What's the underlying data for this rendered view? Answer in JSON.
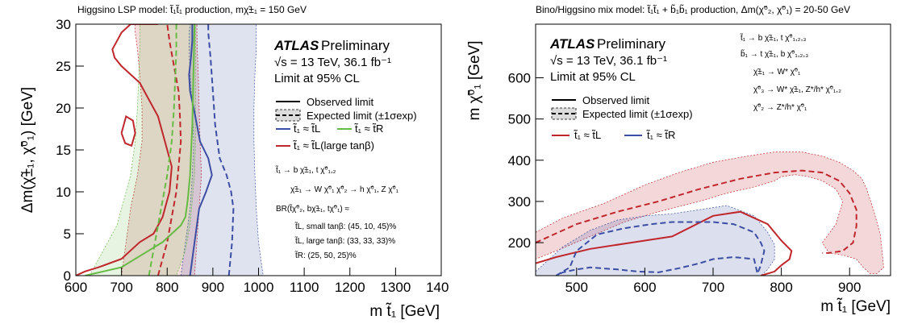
{
  "chart_data": [
    {
      "type": "area",
      "top_title": "Higgsino LSP model: t̃₁t̃₁ production, mχ̃±₁ = 150 GeV",
      "xlabel": "m t̃₁ [GeV]",
      "ylabel": "Δm(χ̃±₁, χ̃⁰₁) [GeV]",
      "xlim": [
        600,
        1400
      ],
      "ylim": [
        0,
        30
      ],
      "x_ticks": [
        "600",
        "700",
        "800",
        "900",
        "1000",
        "1100",
        "1200",
        "1300",
        "1400"
      ],
      "y_ticks": [
        "0",
        "5",
        "10",
        "15",
        "20",
        "25",
        "30"
      ],
      "atlas_label": "ATLAS",
      "preliminary": "Preliminary",
      "energy_lumi": "√s = 13 TeV, 36.1 fb⁻¹",
      "cl_text": "Limit at 95% CL",
      "legend": {
        "observed": "Observed limit",
        "expected": "Expected limit (±1σexp)",
        "tL": "t̃₁ ≈ t̃L",
        "tR": "t̃₁ ≈ t̃R",
        "tL_large": "t̃₁ ≈ t̃L(large tanβ)"
      },
      "notes": [
        "t̃₁ → b χ̃±₁, t χ̃⁰₁,₂",
        "χ̃±₁ → W χ̃⁰₁    χ̃⁰₂ → h χ̃⁰₁, Z χ̃⁰₁",
        "BR(t̃χ̃⁰₂, bχ̃±₁, tχ̃⁰₁) ≈",
        "t̃L, small tanβ: (45, 10, 45)%",
        "t̃L, large tanβ: (33, 33, 33)%",
        "t̃R: (25, 50, 25)%"
      ],
      "colors": {
        "tL": "#c0272d",
        "tR": "#3b4ea3",
        "tL_large": "#66bb44"
      },
      "series": [
        {
          "name": "t̃₁ ≈ t̃L",
          "observed": {
            "x": [
              600,
              620,
              650,
              700,
              720,
              740,
              770,
              790,
              805,
              810,
              800,
              790,
              780,
              760,
              740,
              720,
              700,
              685,
              680,
              690,
              700,
              720,
              740,
              750,
              760,
              770,
              780,
              780
            ],
            "y": [
              0,
              0.5,
              1,
              2,
              3,
              4,
              5,
              7,
              10,
              13,
              15,
              17,
              19,
              21,
              23,
              24,
              25,
              26,
              27,
              28,
              29,
              30,
              30,
              30,
              30,
              30,
              30,
              30
            ]
          },
          "expected": {
            "x": [
              780,
              790,
              800,
              810,
              820,
              825,
              830,
              828,
              825,
              815,
              805,
              800
            ],
            "y": [
              0,
              2,
              4,
              7,
              10,
              13,
              16,
              19,
              22,
              25,
              28,
              30
            ]
          },
          "band_low": {
            "x": [
              700,
              710,
              720,
              735,
              745,
              745,
              740,
              735,
              730,
              730
            ],
            "y": [
              0,
              4,
              8,
              12,
              16,
              20,
              24,
              27,
              29,
              30
            ]
          },
          "band_high": {
            "x": [
              860,
              865,
              870,
              875,
              872,
              870,
              868,
              866,
              865,
              865
            ],
            "y": [
              0,
              4,
              8,
              12,
              16,
              20,
              24,
              27,
              29,
              30
            ]
          }
        },
        {
          "name": "t̃₁ ≈ t̃R",
          "observed": {
            "x": [
              850,
              855,
              860,
              870,
              885,
              898,
              890,
              872,
              865,
              858,
              850,
              848,
              852,
              855,
              855
            ],
            "y": [
              0,
              2,
              4,
              8,
              10,
              12,
              14,
              16,
              18,
              20,
              22,
              24,
              26,
              28,
              30
            ]
          },
          "expected": {
            "x": [
              935,
              942,
              945,
              940,
              930,
              915,
              905,
              900,
              895,
              890,
              890
            ],
            "y": [
              0,
              4,
              8,
              10,
              12,
              14,
              18,
              22,
              26,
              29,
              30
            ]
          },
          "band_low": {
            "x": [
              830,
              840,
              850,
              855,
              858,
              855,
              850,
              848,
              848,
              850
            ],
            "y": [
              0,
              4,
              8,
              12,
              16,
              20,
              24,
              27,
              29,
              30
            ]
          },
          "band_high": {
            "x": [
              1010,
              1000,
              995,
              992,
              990,
              990,
              992,
              995,
              995,
              995
            ],
            "y": [
              0,
              4,
              8,
              12,
              16,
              20,
              24,
              27,
              29,
              30
            ]
          }
        },
        {
          "name": "t̃₁ ≈ t̃L(large tanβ)",
          "observed": {
            "x": [
              620,
              660,
              700,
              730,
              760,
              790,
              810,
              830,
              840,
              845,
              850,
              855,
              860
            ],
            "y": [
              0,
              0.5,
              1,
              2,
              3,
              4,
              5,
              6,
              7,
              9,
              12,
              18,
              30
            ]
          },
          "expected": {
            "x": [
              760,
              770,
              780,
              790,
              800,
              810,
              815,
              818,
              820,
              820
            ],
            "y": [
              0,
              3,
              6,
              9,
              12,
              16,
              20,
              24,
              27,
              30
            ]
          },
          "band_low": {
            "x": [
              630,
              660,
              690,
              705,
              720,
              730,
              735,
              738,
              740,
              740
            ],
            "y": [
              0,
              3,
              6,
              9,
              12,
              16,
              20,
              24,
              27,
              30
            ]
          },
          "band_high": {
            "x": [
              820,
              840,
              850,
              855,
              860,
              862,
              862,
              862,
              862,
              862
            ],
            "y": [
              0,
              3,
              6,
              9,
              12,
              16,
              20,
              24,
              27,
              30
            ]
          }
        }
      ]
    },
    {
      "type": "area",
      "top_title": "Bino/Higgsino mix model: t̃₁t̃₁ + b̃₁b̃₁ production, Δm(χ̃⁰₂, χ̃⁰₁) = 20-50 GeV",
      "xlabel": "m t̃₁ [GeV]",
      "ylabel": "m χ̃⁰₁ [GeV]",
      "xlim": [
        440,
        960
      ],
      "ylim": [
        120,
        730
      ],
      "x_ticks": [
        "500",
        "600",
        "700",
        "800",
        "900"
      ],
      "y_ticks": [
        "200",
        "300",
        "400",
        "500",
        "600"
      ],
      "atlas_label": "ATLAS",
      "preliminary": "Preliminary",
      "energy_lumi": "√s = 13 TeV, 36.1 fb⁻¹",
      "cl_text": "Limit at 95% CL",
      "legend": {
        "observed": "Observed limit",
        "expected": "Expected limit (±1σexp)",
        "tL": "t̃₁ ≈ t̃L",
        "tR": "t̃₁ ≈ t̃R"
      },
      "notes": [
        "t̃₁ → b χ̃±₁, t χ̃⁰₁,₂,₃",
        "b̃₁ → t χ̃±₁, b χ̃⁰₁,₂,₃",
        "χ̃±₁ → W* χ̃⁰₁",
        "χ̃⁰₃ → W* χ̃±₁, Z*/h* χ̃⁰₁,₂",
        "χ̃⁰₂ → Z*/h* χ̃⁰₁"
      ],
      "colors": {
        "tL": "#c0272d",
        "tR": "#3b4ea3"
      },
      "series": [
        {
          "name": "t̃₁ ≈ t̃L",
          "observed": {
            "x": [
              440,
              470,
              520,
              600,
              640,
              700,
              740,
              780,
              800,
              815,
              812,
              800,
              790,
              770
            ],
            "y": [
              150,
              165,
              185,
              205,
              215,
              265,
              275,
              245,
              205,
              180,
              160,
              145,
              130,
              120
            ]
          },
          "expected": {
            "x": [
              440,
              500,
              560,
              620,
              680,
              740,
              790,
              830,
              860,
              885,
              900,
              910,
              910,
              905,
              890,
              870,
              860
            ],
            "y": [
              200,
              245,
              275,
              300,
              330,
              355,
              370,
              375,
              370,
              350,
              320,
              280,
              240,
              200,
              180,
              175,
              175
            ]
          },
          "band_outer": {
            "x": [
              440,
              480,
              540,
              600,
              650,
              700,
              750,
              790,
              830,
              860,
              885,
              905,
              918,
              925,
              935,
              945,
              950,
              940,
              930,
              920,
              910,
              890,
              870,
              860,
              880,
              890,
              880,
              860,
              840,
              820,
              800,
              790,
              760,
              720,
              680,
              620,
              570,
              520,
              470,
              440
            ],
            "y": [
              225,
              260,
              295,
              340,
              370,
              395,
              410,
              420,
              420,
              410,
              395,
              375,
              355,
              330,
              280,
              220,
              140,
              125,
              125,
              140,
              160,
              170,
              175,
              200,
              245,
              300,
              330,
              350,
              360,
              365,
              360,
              350,
              335,
              320,
              300,
              275,
              250,
              215,
              180,
              160
            ]
          }
        },
        {
          "name": "t̃₁ ≈ t̃R",
          "observed": {
            "x": [],
            "y": []
          },
          "expected": {
            "x": [
              470,
              490,
              500,
              530,
              570,
              610,
              640,
              700,
              730,
              760,
              770,
              775,
              772,
              770,
              765,
              760,
              730,
              700,
              680,
              650,
              620,
              590,
              560,
              520,
              500,
              480,
              470
            ],
            "y": [
              120,
              140,
              180,
              220,
              235,
              245,
              250,
              250,
              245,
              225,
              200,
              180,
              160,
              145,
              125,
              160,
              165,
              160,
              150,
              138,
              128,
              130,
              135,
              140,
              135,
              128,
              120
            ]
          },
          "band_outer": {
            "x": [
              440,
              480,
              520,
              560,
              600,
              640,
              680,
              720,
              760,
              780,
              790,
              790,
              780,
              770,
              760,
              740,
              720,
              690,
              660,
              620,
              580,
              540,
              500,
              460,
              440
            ],
            "y": [
              130,
              190,
              230,
              255,
              265,
              270,
              280,
              290,
              265,
              225,
              195,
              160,
              135,
              120,
              120,
              120,
              120,
              120,
              120,
              120,
              120,
              120,
              120,
              120,
              120
            ]
          }
        }
      ]
    }
  ]
}
